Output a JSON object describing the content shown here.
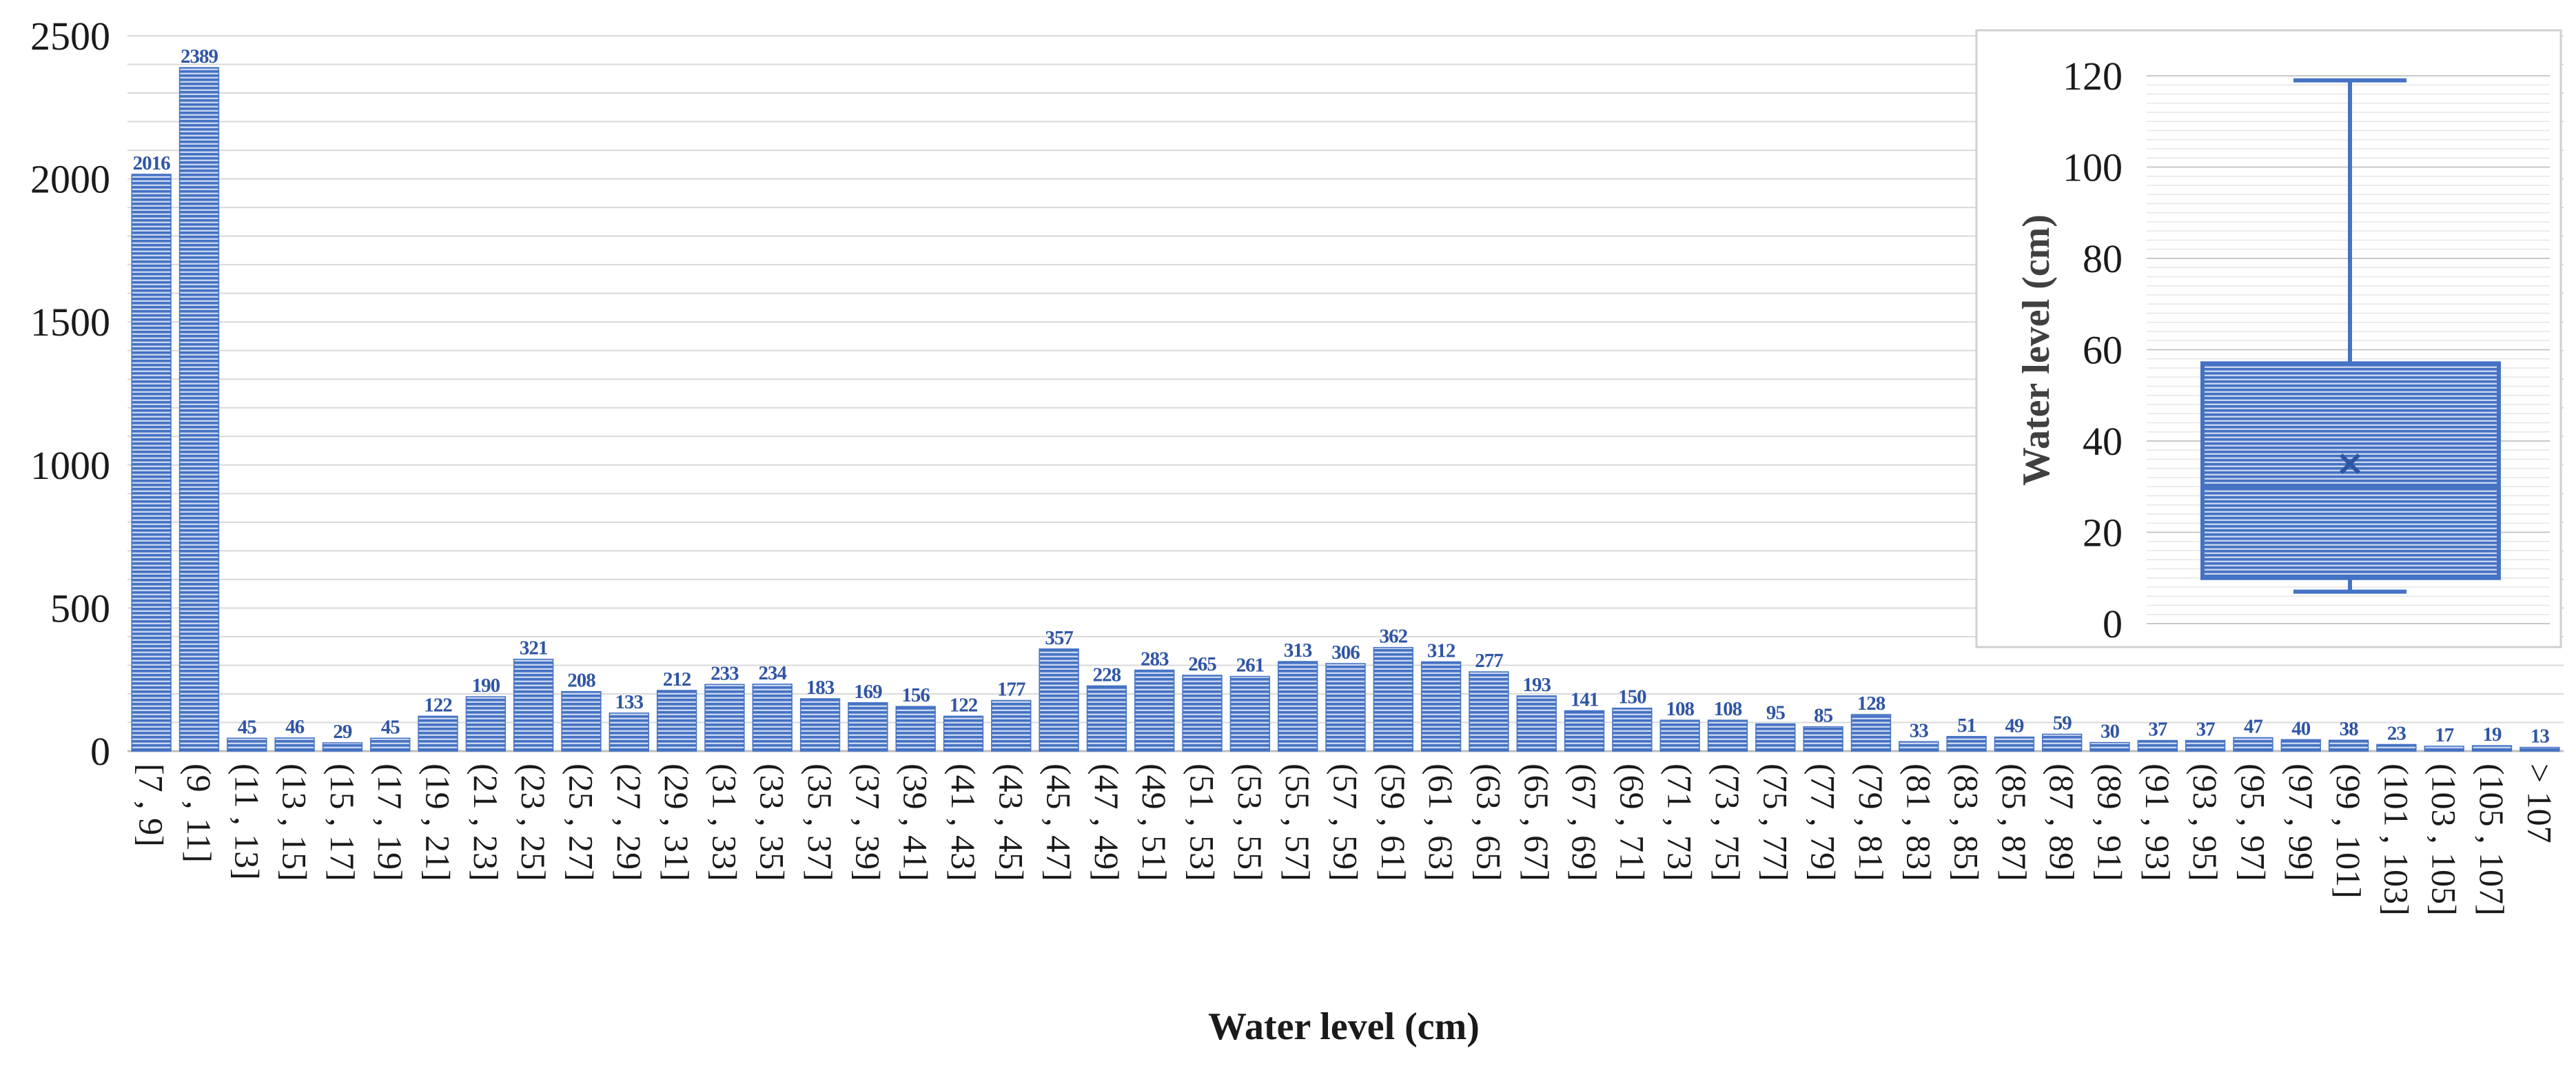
{
  "chart_data": [
    {
      "type": "bar",
      "xlabel": "Water level (cm)",
      "ylabel": "",
      "ylim": [
        0,
        2500
      ],
      "yticks": [
        0,
        500,
        1000,
        1500,
        2000,
        2500
      ],
      "grid": true,
      "bar_color": "#4472c4",
      "label_color": "#2f55a5",
      "categories": [
        "[7 , 9]",
        "(9 , 11]",
        "(11 , 13]",
        "(13 , 15]",
        "(15 , 17]",
        "(17 , 19]",
        "(19 , 21]",
        "(21 , 23]",
        "(23 , 25]",
        "(25 , 27]",
        "(27 , 29]",
        "(29 , 31]",
        "(31 , 33]",
        "(33 , 35]",
        "(35 , 37]",
        "(37 , 39]",
        "(39 , 41]",
        "(41 , 43]",
        "(43 , 45]",
        "(45 , 47]",
        "(47 , 49]",
        "(49 , 51]",
        "(51 , 53]",
        "(53 , 55]",
        "(55 , 57]",
        "(57 , 59]",
        "(59 , 61]",
        "(61 , 63]",
        "(63 , 65]",
        "(65 , 67]",
        "(67 , 69]",
        "(69 , 71]",
        "(71 , 73]",
        "(73 , 75]",
        "(75 , 77]",
        "(77 , 79]",
        "(79 , 81]",
        "(81 , 83]",
        "(83 , 85]",
        "(85 , 87]",
        "(87 , 89]",
        "(89 , 91]",
        "(91 , 93]",
        "(93 , 95]",
        "(95 , 97]",
        "(97 , 99]",
        "(99 , 101]",
        "(101 , 103]",
        "(103 , 105]",
        "(105 , 107]",
        "> 107"
      ],
      "values": [
        2016,
        2389,
        45,
        46,
        29,
        45,
        122,
        190,
        321,
        208,
        133,
        212,
        233,
        234,
        183,
        169,
        156,
        122,
        177,
        357,
        228,
        283,
        265,
        261,
        313,
        306,
        362,
        312,
        277,
        193,
        141,
        150,
        108,
        108,
        95,
        85,
        128,
        33,
        51,
        49,
        59,
        30,
        37,
        37,
        47,
        40,
        38,
        23,
        17,
        19,
        13
      ]
    },
    {
      "type": "box",
      "ylabel": "Water level (cm)",
      "ylim": [
        0,
        120
      ],
      "yticks": [
        0,
        20,
        40,
        60,
        80,
        100,
        120
      ],
      "grid": true,
      "whisker_low": 7,
      "q1": 10,
      "median": 30,
      "mean": 35,
      "q3": 57,
      "whisker_high": 119,
      "color": "#4472c4"
    }
  ]
}
